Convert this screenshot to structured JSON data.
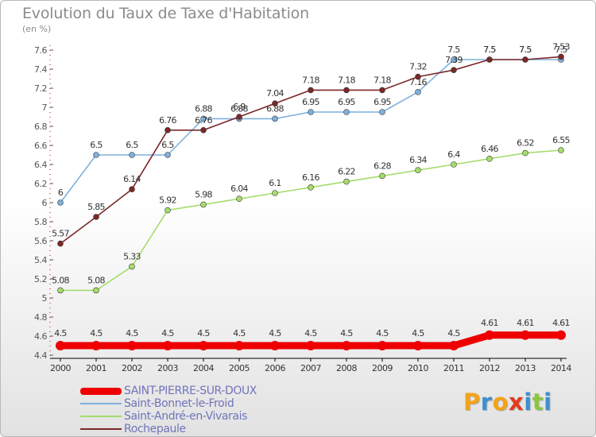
{
  "header": {
    "title": "Evolution du Taux de Taxe d'Habitation",
    "unit": "(en %)"
  },
  "chart_data": {
    "type": "line",
    "x": [
      "2000",
      "2001",
      "2002",
      "2003",
      "2004",
      "2005",
      "2006",
      "2007",
      "2008",
      "2009",
      "2010",
      "2011",
      "2012",
      "2013",
      "2014"
    ],
    "y_ticks": [
      "4.4",
      "4.6",
      "4.8",
      "5",
      "5.2",
      "5.4",
      "5.6",
      "5.8",
      "6",
      "6.2",
      "6.4",
      "6.6",
      "6.8",
      "7",
      "7.2",
      "7.4",
      "7.6"
    ],
    "ylim": [
      4.4,
      7.6
    ],
    "grid": false,
    "series": [
      {
        "name": "SAINT-PIERRE-SUR-DOUX",
        "color": "#ee0000",
        "values": [
          4.5,
          4.5,
          4.5,
          4.5,
          4.5,
          4.5,
          4.5,
          4.5,
          4.5,
          4.5,
          4.5,
          4.5,
          4.61,
          4.61,
          4.61
        ],
        "labels": [
          "4.5",
          "4.5",
          "4.5",
          "4.5",
          "4.5",
          "4.5",
          "4.5",
          "4.5",
          "4.5",
          "4.5",
          "4.5",
          "4.5",
          "4.61",
          "4.61",
          "4.61"
        ]
      },
      {
        "name": "Saint-Bonnet-le-Froid",
        "color": "#7fb0dc",
        "values": [
          6,
          6.5,
          6.5,
          6.5,
          6.88,
          6.88,
          6.88,
          6.95,
          6.95,
          6.95,
          7.16,
          7.5,
          7.5,
          7.5,
          7.5
        ],
        "labels": [
          "6",
          "6.5",
          "6.5",
          "6.5",
          "6.88",
          "6.88",
          "6.88",
          "6.95",
          "6.95",
          "6.95",
          "7.16",
          "7.5",
          "7.5",
          "7.5",
          "7.5"
        ]
      },
      {
        "name": "Saint-André-en-Vivarais",
        "color": "#a6dc6c",
        "values": [
          5.08,
          5.08,
          5.33,
          5.92,
          5.98,
          6.04,
          6.1,
          6.16,
          6.22,
          6.28,
          6.34,
          6.4,
          6.46,
          6.52,
          6.55
        ],
        "labels": [
          "5.08",
          "5.08",
          "5.33",
          "5.92",
          "5.98",
          "6.04",
          "6.1",
          "6.16",
          "6.22",
          "6.28",
          "6.34",
          "6.4",
          "6.46",
          "6.52",
          "6.55"
        ]
      },
      {
        "name": "Rochepaule",
        "color": "#7b2828",
        "values": [
          5.57,
          5.85,
          6.14,
          6.76,
          6.76,
          6.9,
          7.04,
          7.18,
          7.18,
          7.18,
          7.32,
          7.39,
          7.5,
          7.5,
          7.53
        ],
        "labels": [
          "5.57",
          "5.85",
          "6.14",
          "6.76",
          "6.76",
          "6.9",
          "7.04",
          "7.18",
          "7.18",
          "7.18",
          "7.32",
          "7.39",
          "7.5",
          "7.5",
          "7.53"
        ]
      }
    ]
  },
  "legend": {
    "items": [
      {
        "label": "SAINT-PIERRE-SUR-DOUX"
      },
      {
        "label": "Saint-Bonnet-le-Froid"
      },
      {
        "label": "Saint-André-en-Vivarais"
      },
      {
        "label": "Rochepaule"
      }
    ]
  },
  "logo": {
    "letters": [
      "P",
      "r",
      "o",
      "x",
      "i",
      "t",
      "i"
    ],
    "colors": [
      "#f3a317",
      "#3d8fd0",
      "#f3a317",
      "#e23a1e",
      "#3d8fd0",
      "#8cc63e",
      "#3d8fd0"
    ]
  }
}
